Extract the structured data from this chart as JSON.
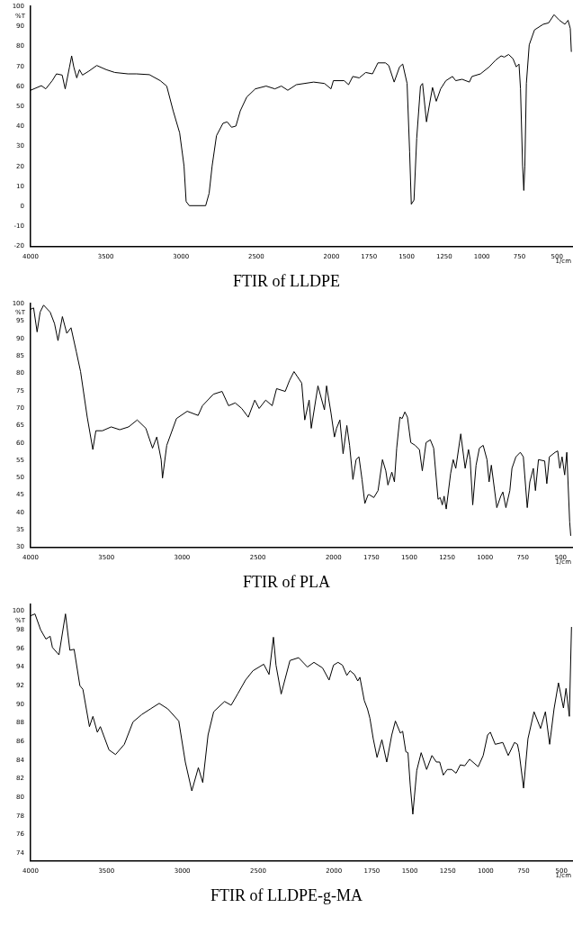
{
  "chart_data": [
    {
      "type": "line",
      "title": "FTIR of LLDPE",
      "xlabel": "1/cm",
      "ylabel": "%T",
      "color": "#000000",
      "xlim": [
        4000,
        400
      ],
      "xticks": [
        4000,
        3500,
        3000,
        2500,
        2000,
        1750,
        1500,
        1250,
        1000,
        750,
        500
      ],
      "ylim": [
        -20,
        100
      ],
      "yticks": [
        100,
        90,
        80,
        70,
        60,
        50,
        40,
        30,
        20,
        10,
        0,
        -10,
        -20
      ],
      "x": [
        4000,
        3928,
        3899,
        3856,
        3828,
        3790,
        3770,
        3741,
        3727,
        3713,
        3693,
        3675,
        3655,
        3612,
        3560,
        3497,
        3440,
        3353,
        3296,
        3210,
        3138,
        3095,
        3052,
        3009,
        2980,
        2966,
        2945,
        2836,
        2813,
        2793,
        2764,
        2721,
        2693,
        2664,
        2635,
        2606,
        2563,
        2506,
        2434,
        2376,
        2333,
        2290,
        2233,
        2118,
        2046,
        2003,
        1987,
        1915,
        1886,
        1858,
        1815,
        1772,
        1727,
        1691,
        1641,
        1619,
        1583,
        1547,
        1526,
        1497,
        1480,
        1469,
        1451,
        1433,
        1408,
        1394,
        1368,
        1346,
        1328,
        1303,
        1274,
        1239,
        1195,
        1174,
        1131,
        1083,
        1066,
        1009,
        951,
        908,
        872,
        851,
        822,
        793,
        771,
        753,
        743,
        729,
        721,
        714,
        704,
        685,
        650,
        592,
        556,
        520,
        484,
        448,
        427,
        412,
        405
      ],
      "values": [
        58.1,
        60.4,
        58.8,
        62.9,
        66.3,
        65.7,
        58.8,
        69.8,
        75.3,
        69.8,
        64.3,
        68.4,
        65.7,
        67.7,
        70.5,
        68.4,
        67.0,
        66.3,
        66.3,
        65.9,
        62.9,
        60.2,
        47.8,
        36.8,
        20.3,
        2.5,
        0.4,
        0.4,
        6.6,
        20.3,
        35.4,
        41.6,
        42.3,
        39.6,
        40.2,
        47.8,
        54.7,
        58.8,
        60.2,
        58.8,
        60.2,
        58.1,
        60.9,
        62.2,
        61.5,
        58.8,
        62.9,
        62.9,
        60.9,
        65.0,
        64.3,
        67.0,
        66.3,
        71.8,
        71.8,
        70.5,
        62.2,
        69.8,
        71.2,
        61.5,
        27.2,
        1.1,
        3.2,
        34.1,
        60.2,
        61.5,
        42.3,
        51.9,
        59.5,
        52.6,
        58.8,
        62.9,
        65.0,
        62.9,
        63.6,
        62.2,
        65.0,
        66.3,
        69.8,
        73.2,
        75.3,
        74.7,
        76.0,
        73.9,
        69.8,
        71.2,
        58.8,
        20.3,
        8.0,
        20.3,
        61.5,
        80.8,
        88.3,
        91.1,
        91.8,
        95.9,
        93.1,
        91.1,
        93.1,
        89.0,
        77.3
      ]
    },
    {
      "type": "line",
      "title": "FTIR of PLA",
      "xlabel": "1/cm",
      "ylabel": "%T",
      "color": "#000000",
      "xlim": [
        4000,
        425
      ],
      "xticks": [
        4000,
        3500,
        3000,
        2500,
        2000,
        1750,
        1500,
        1250,
        1000,
        750,
        500
      ],
      "ylim": [
        30,
        100
      ],
      "yticks": [
        100,
        95,
        90,
        85,
        80,
        75,
        70,
        65,
        60,
        55,
        50,
        45,
        40,
        35,
        30
      ],
      "x": [
        4000,
        3980,
        3957,
        3937,
        3914,
        3871,
        3842,
        3819,
        3790,
        3761,
        3733,
        3698,
        3670,
        3626,
        3589,
        3569,
        3526,
        3468,
        3411,
        3353,
        3296,
        3239,
        3195,
        3167,
        3138,
        3129,
        3101,
        3037,
        2966,
        2894,
        2865,
        2793,
        2736,
        2693,
        2649,
        2606,
        2563,
        2520,
        2491,
        2448,
        2405,
        2376,
        2319,
        2290,
        2261,
        2210,
        2190,
        2161,
        2147,
        2103,
        2060,
        2046,
        2017,
        1994,
        1980,
        1958,
        1937,
        1912,
        1894,
        1872,
        1851,
        1832,
        1812,
        1793,
        1772,
        1763,
        1734,
        1706,
        1677,
        1655,
        1641,
        1615,
        1598,
        1583,
        1562,
        1547,
        1529,
        1512,
        1490,
        1461,
        1433,
        1414,
        1389,
        1361,
        1339,
        1310,
        1296,
        1282,
        1270,
        1256,
        1227,
        1210,
        1193,
        1160,
        1131,
        1109,
        1098,
        1081,
        1059,
        1037,
        1012,
        987,
        973,
        958,
        922,
        896,
        882,
        862,
        836,
        822,
        796,
        767,
        747,
        721,
        704,
        681,
        667,
        647,
        606,
        592,
        575,
        537,
        520,
        506,
        491,
        474,
        460,
        441,
        434
      ],
      "values": [
        98.4,
        98.8,
        91.9,
        97.6,
        99.6,
        97.6,
        94.3,
        89.4,
        96.3,
        91.5,
        93.1,
        86.2,
        80.5,
        67.4,
        58.1,
        63.5,
        63.5,
        64.6,
        63.8,
        64.6,
        66.6,
        64.2,
        58.5,
        61.7,
        55.2,
        49.9,
        59.3,
        67.0,
        69.1,
        67.9,
        70.7,
        74.0,
        74.8,
        70.7,
        71.5,
        69.9,
        67.4,
        72.3,
        69.9,
        72.3,
        70.7,
        75.6,
        74.8,
        78.0,
        80.5,
        77.2,
        66.6,
        72.3,
        64.2,
        76.4,
        69.5,
        76.4,
        68.7,
        61.7,
        64.2,
        66.6,
        56.9,
        65.0,
        59.3,
        49.5,
        55.2,
        56.0,
        49.5,
        42.6,
        45.1,
        45.1,
        44.3,
        46.3,
        55.2,
        52.0,
        47.9,
        51.6,
        48.8,
        58.5,
        67.4,
        67.0,
        68.9,
        67.4,
        60.1,
        59.3,
        58.1,
        52.0,
        60.1,
        60.9,
        58.5,
        43.8,
        44.3,
        42.2,
        44.7,
        41.0,
        51.2,
        55.2,
        52.7,
        62.6,
        52.7,
        58.1,
        55.2,
        42.2,
        53.6,
        58.5,
        59.3,
        55.2,
        48.8,
        53.6,
        41.4,
        44.7,
        45.9,
        41.4,
        46.3,
        52.7,
        56.0,
        57.3,
        56.0,
        41.4,
        48.8,
        52.7,
        46.3,
        55.2,
        54.8,
        48.3,
        56.0,
        57.3,
        57.7,
        52.7,
        56.0,
        50.8,
        57.3,
        37.3,
        33.3
      ]
    },
    {
      "type": "line",
      "title": "FTIR of LLDPE-g-MA",
      "xlabel": "1/cm",
      "ylabel": "%T",
      "color": "#000000",
      "xlim": [
        4000,
        430
      ],
      "xticks": [
        4000,
        3500,
        3000,
        2500,
        2000,
        1750,
        1500,
        1250,
        1000,
        750,
        500
      ],
      "ylim": [
        73.2,
        100.7
      ],
      "yticks": [
        100,
        98,
        96,
        94,
        92,
        90,
        88,
        86,
        84,
        82,
        80,
        78,
        76,
        74
      ],
      "x": [
        4000,
        3971,
        3934,
        3899,
        3871,
        3856,
        3813,
        3770,
        3741,
        3713,
        3675,
        3655,
        3612,
        3589,
        3560,
        3540,
        3483,
        3440,
        3382,
        3325,
        3267,
        3210,
        3152,
        3095,
        3023,
        2980,
        2937,
        2894,
        2865,
        2830,
        2793,
        2721,
        2678,
        2635,
        2583,
        2534,
        2463,
        2428,
        2399,
        2382,
        2348,
        2290,
        2233,
        2175,
        2132,
        2075,
        2032,
        2003,
        1973,
        1944,
        1915,
        1894,
        1865,
        1843,
        1829,
        1800,
        1779,
        1763,
        1741,
        1716,
        1684,
        1652,
        1619,
        1595,
        1562,
        1547,
        1526,
        1512,
        1497,
        1480,
        1454,
        1425,
        1389,
        1354,
        1325,
        1303,
        1279,
        1253,
        1224,
        1195,
        1167,
        1138,
        1106,
        1049,
        1016,
        987,
        969,
        937,
        887,
        851,
        810,
        790,
        779,
        750,
        721,
        681,
        638,
        606,
        578,
        549,
        520,
        487,
        470,
        448,
        434
      ],
      "values": [
        99.5,
        99.7,
        98.0,
        97.0,
        97.3,
        96.1,
        95.3,
        99.7,
        95.8,
        95.9,
        92.0,
        91.6,
        87.6,
        88.7,
        87.0,
        87.6,
        85.1,
        84.6,
        85.7,
        88.1,
        88.9,
        89.5,
        90.1,
        89.5,
        88.2,
        83.8,
        80.7,
        83.2,
        81.6,
        86.7,
        89.2,
        90.3,
        89.9,
        91.1,
        92.6,
        93.6,
        94.3,
        93.2,
        97.2,
        94.2,
        91.1,
        94.7,
        95.0,
        94.0,
        94.5,
        93.9,
        92.6,
        94.2,
        94.5,
        94.2,
        93.1,
        93.6,
        93.2,
        92.5,
        92.9,
        90.4,
        89.5,
        88.5,
        86.3,
        84.3,
        86.2,
        83.8,
        86.7,
        88.2,
        86.9,
        87.1,
        84.9,
        84.8,
        81.3,
        78.2,
        82.9,
        84.8,
        83.0,
        84.5,
        83.8,
        83.8,
        82.4,
        83.0,
        83.0,
        82.6,
        83.5,
        83.4,
        84.1,
        83.3,
        84.5,
        86.7,
        87.0,
        85.7,
        85.9,
        84.5,
        85.9,
        85.7,
        84.8,
        81.0,
        86.3,
        89.2,
        87.4,
        89.2,
        85.7,
        89.5,
        92.3,
        89.6,
        91.7,
        88.7,
        98.3
      ]
    }
  ]
}
